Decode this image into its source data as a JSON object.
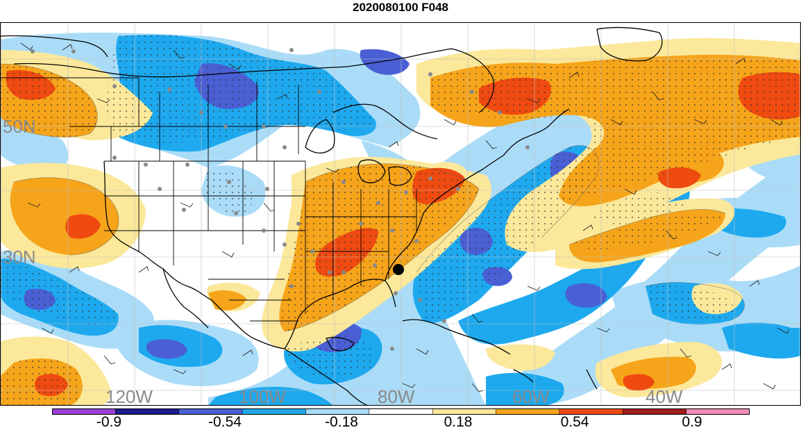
{
  "title": "2020080100 F048",
  "map": {
    "lat_labels": [
      "50N",
      "30N"
    ],
    "lon_labels": [
      "120W",
      "100W",
      "80W",
      "60W",
      "40W"
    ]
  },
  "colorbar": {
    "colors": [
      "#9b3fd6",
      "#1a1a8c",
      "#4a5fd4",
      "#1ea9ef",
      "#aadcf8",
      "#ffffff",
      "#fbe89a",
      "#f6a41a",
      "#ef4a10",
      "#a11c1c",
      "#f48ab8"
    ],
    "tick_labels": [
      "-0.9",
      "-0.54",
      "-0.18",
      "0.18",
      "0.54",
      "0.9"
    ]
  }
}
